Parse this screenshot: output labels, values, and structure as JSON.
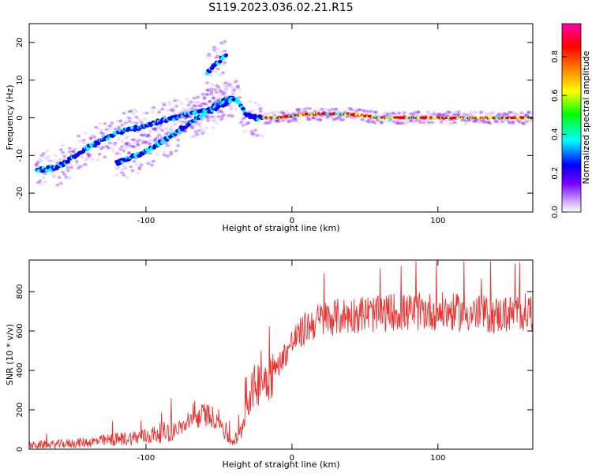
{
  "figure": {
    "title": "S119.2023.036.02.21.R15"
  },
  "chart_data": [
    {
      "type": "heatmap",
      "xlabel": "Height of straight line (km)",
      "ylabel": "Frequency (Hz)",
      "xlim": [
        -180,
        165
      ],
      "ylim": [
        -25,
        25
      ],
      "x_ticks": [
        -100,
        0,
        100
      ],
      "y_ticks": [
        -20,
        -10,
        0,
        10,
        20
      ],
      "colorbar": {
        "label": "Normalized spectral amplitude",
        "range": [
          0,
          0.97
        ],
        "ticks": [
          0.0,
          0.2,
          0.4,
          0.6,
          0.8
        ],
        "colormap": [
          "#ffffff",
          "#c9a3ff",
          "#7a00ff",
          "#0000ff",
          "#00ffff",
          "#00ff00",
          "#ffff00",
          "#ff8000",
          "#ff0000",
          "#ff00aa"
        ]
      },
      "ridges": [
        {
          "points": [
            [
              -175,
              -14
            ],
            [
              -160,
              -13
            ],
            [
              -140,
              -8
            ],
            [
              -120,
              -4
            ],
            [
              -100,
              -2
            ],
            [
              -80,
              0
            ],
            [
              -60,
              2
            ],
            [
              -45,
              5
            ],
            [
              -38,
              5
            ],
            [
              -32,
              1
            ],
            [
              -25,
              0
            ],
            [
              -10,
              0
            ],
            [
              10,
              1
            ],
            [
              40,
              1
            ],
            [
              60,
              0
            ],
            [
              100,
              0
            ],
            [
              130,
              0
            ],
            [
              165,
              0
            ]
          ]
        },
        {
          "points": [
            [
              -120,
              -12
            ],
            [
              -100,
              -9
            ],
            [
              -80,
              -4
            ],
            [
              -65,
              0
            ],
            [
              -50,
              3
            ],
            [
              -40,
              5
            ]
          ]
        },
        {
          "points": [
            [
              -58,
              12
            ],
            [
              -50,
              15
            ],
            [
              -45,
              17
            ]
          ]
        }
      ]
    },
    {
      "type": "line",
      "xlabel": "Height of straight line (km)",
      "ylabel": "SNR (10 * v/v)",
      "xlim": [
        -180,
        165
      ],
      "ylim": [
        0,
        960
      ],
      "x_ticks": [
        -100,
        0,
        100
      ],
      "y_ticks": [
        0,
        200,
        400,
        600,
        800
      ],
      "series": [
        {
          "color": "#ee3333",
          "x": [
            -180,
            -160,
            -140,
            -120,
            -100,
            -80,
            -70,
            -60,
            -50,
            -42,
            -36,
            -30,
            -25,
            -20,
            -15,
            -10,
            -5,
            0,
            10,
            20,
            30,
            40,
            50,
            60,
            70,
            80,
            90,
            100,
            120,
            140,
            165
          ],
          "values": [
            20,
            25,
            35,
            50,
            65,
            100,
            130,
            180,
            150,
            40,
            60,
            250,
            330,
            350,
            380,
            420,
            480,
            540,
            620,
            660,
            670,
            680,
            690,
            680,
            700,
            690,
            700,
            700,
            690,
            680,
            700
          ]
        }
      ]
    }
  ]
}
